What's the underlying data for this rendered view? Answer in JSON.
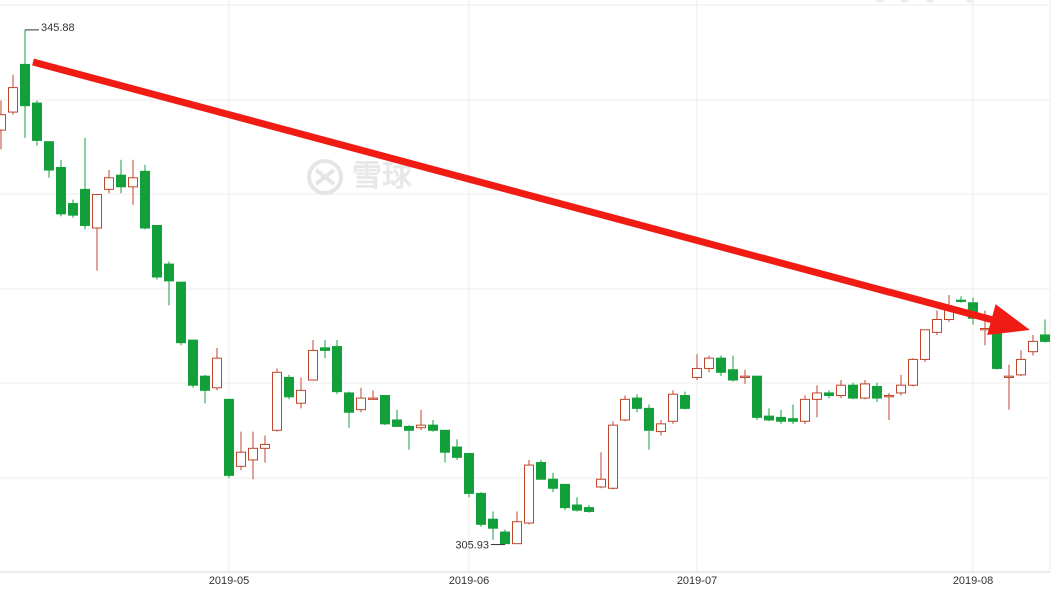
{
  "chart_data": {
    "type": "candlestick",
    "watermark": "雪球",
    "categories": [
      null,
      null,
      null,
      null,
      null,
      null,
      null,
      null,
      null,
      null,
      null,
      null,
      null,
      null,
      null,
      null,
      null,
      null,
      null,
      "2019-05",
      null,
      null,
      null,
      null,
      null,
      null,
      null,
      null,
      null,
      null,
      null,
      null,
      null,
      null,
      null,
      null,
      null,
      null,
      null,
      "2019-06",
      null,
      null,
      null,
      null,
      null,
      null,
      null,
      null,
      null,
      null,
      null,
      null,
      null,
      null,
      null,
      null,
      null,
      null,
      "2019-07",
      null,
      null,
      null,
      null,
      null,
      null,
      null,
      null,
      null,
      null,
      null,
      null,
      null,
      null,
      null,
      null,
      null,
      null,
      null,
      null,
      null,
      null,
      "2019-08",
      null,
      null,
      null,
      null,
      null,
      null
    ],
    "open": [
      338.1,
      339.5,
      343.2,
      340.2,
      337.2,
      335.2,
      332.4,
      333.5,
      330.5,
      333.5,
      334.6,
      333.7,
      334.9,
      330.7,
      327.7,
      326.3,
      321.8,
      319.0,
      318.1,
      317.2,
      312.0,
      312.5,
      313.4,
      314.8,
      318.9,
      316.9,
      318.7,
      321.2,
      321.3,
      317.7,
      316.4,
      317.2,
      317.5,
      315.6,
      315.1,
      315.0,
      315.2,
      314.8,
      313.5,
      313.0,
      309.9,
      307.9,
      306.9,
      306.0,
      307.6,
      312.3,
      311.0,
      310.6,
      309.0,
      308.8,
      310.4,
      310.3,
      315.6,
      317.3,
      316.5,
      314.7,
      315.5,
      317.5,
      318.9,
      319.6,
      320.4,
      319.5,
      318.9,
      319.0,
      315.9,
      315.8,
      315.7,
      315.5,
      317.2,
      317.7,
      317.5,
      318.3,
      317.3,
      318.2,
      317.4,
      317.7,
      318.3,
      320.3,
      322.4,
      323.4,
      324.9,
      324.7,
      322.6,
      322.6,
      318.9,
      319.1,
      320.9,
      322.2
    ],
    "high": [
      340.4,
      342.4,
      345.88,
      340.4,
      337.2,
      335.8,
      332.7,
      337.5,
      333.1,
      335.0,
      335.8,
      335.8,
      335.4,
      330.7,
      327.9,
      326.3,
      321.8,
      319.1,
      321.2,
      317.2,
      314.7,
      314.7,
      314.4,
      319.6,
      319.1,
      318.9,
      321.8,
      321.8,
      321.8,
      317.8,
      318.1,
      317.9,
      317.5,
      316.4,
      315.2,
      316.4,
      315.6,
      314.8,
      314.1,
      313.0,
      310.0,
      308.5,
      307.1,
      308.5,
      312.5,
      312.5,
      311.5,
      310.6,
      309.6,
      309.0,
      313.1,
      315.5,
      317.5,
      317.6,
      316.8,
      315.6,
      317.9,
      317.8,
      320.7,
      320.6,
      320.6,
      320.6,
      319.5,
      319.0,
      316.5,
      316.4,
      316.8,
      317.5,
      318.3,
      317.9,
      318.7,
      318.5,
      318.7,
      318.5,
      317.7,
      319.1,
      320.4,
      322.6,
      324.1,
      325.3,
      325.2,
      325.1,
      324.1,
      322.7,
      319.9,
      321.0,
      322.2,
      323.4
    ],
    "low": [
      336.6,
      339.3,
      337.5,
      336.9,
      334.4,
      331.4,
      331.3,
      330.4,
      327.2,
      333.2,
      333.2,
      332.3,
      330.4,
      326.5,
      324.5,
      321.4,
      318.1,
      316.9,
      317.9,
      311.1,
      311.7,
      311.0,
      312.3,
      314.7,
      317.2,
      316.5,
      318.7,
      320.4,
      317.6,
      315.0,
      316.2,
      317.2,
      315.2,
      315.1,
      313.3,
      314.8,
      314.7,
      312.3,
      312.5,
      309.6,
      307.3,
      306.3,
      305.93,
      306.0,
      307.5,
      311.0,
      310.0,
      308.6,
      308.5,
      308.4,
      310.3,
      310.2,
      315.5,
      316.2,
      313.3,
      314.4,
      315.3,
      316.4,
      318.7,
      319.3,
      319.0,
      318.6,
      318.4,
      315.6,
      315.5,
      315.3,
      315.3,
      315.3,
      315.8,
      317.3,
      317.3,
      317.2,
      317.2,
      317.0,
      315.6,
      317.5,
      318.2,
      320.1,
      322.2,
      323.2,
      324.7,
      323.0,
      321.4,
      319.5,
      316.4,
      319.0,
      320.6,
      321.6
    ],
    "close": [
      339.3,
      341.4,
      340.0,
      337.3,
      335.0,
      331.6,
      331.5,
      330.7,
      333.1,
      334.4,
      333.7,
      334.4,
      330.5,
      326.7,
      326.4,
      321.6,
      318.3,
      317.9,
      320.4,
      311.3,
      313.1,
      313.4,
      313.7,
      319.3,
      317.4,
      317.9,
      321.0,
      321.0,
      317.8,
      316.2,
      317.3,
      317.3,
      315.3,
      315.1,
      314.8,
      315.2,
      314.8,
      313.1,
      312.7,
      309.9,
      307.5,
      307.2,
      306.0,
      307.7,
      312.1,
      311.0,
      310.3,
      308.8,
      308.6,
      308.5,
      311.0,
      315.2,
      317.2,
      316.5,
      314.8,
      315.3,
      317.6,
      316.5,
      319.6,
      320.4,
      319.3,
      318.7,
      319.0,
      315.8,
      315.6,
      315.5,
      315.5,
      317.2,
      317.7,
      317.5,
      318.3,
      317.3,
      318.4,
      317.3,
      317.5,
      318.3,
      320.3,
      322.6,
      323.4,
      324.3,
      324.8,
      323.5,
      322.7,
      319.6,
      319.0,
      320.3,
      321.7,
      321.7
    ],
    "up_color": "#c0462a",
    "down_color": "#13a03b",
    "ylim": [
      303.8,
      348.2
    ],
    "grid": true
  }
}
